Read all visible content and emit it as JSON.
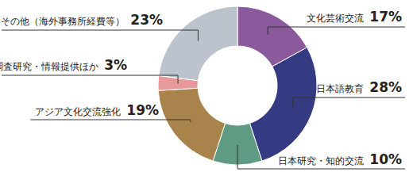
{
  "chart_data": {
    "type": "pie",
    "categories": [
      "文化芸術交流",
      "日本語教育",
      "日本研究・知的交流",
      "アジア文化交流強化",
      "調査研究・情報提供ほか",
      "その他（海外事務所経費等）"
    ],
    "values": [
      17,
      28,
      10,
      19,
      3,
      23
    ],
    "value_labels": [
      "17%",
      "28%",
      "10%",
      "19%",
      "3%",
      "23%"
    ],
    "colors": [
      "#8a5a9c",
      "#353b82",
      "#5f9a82",
      "#a8834c",
      "#e89a9a",
      "#bcc3cc"
    ],
    "data_labels": true
  }
}
